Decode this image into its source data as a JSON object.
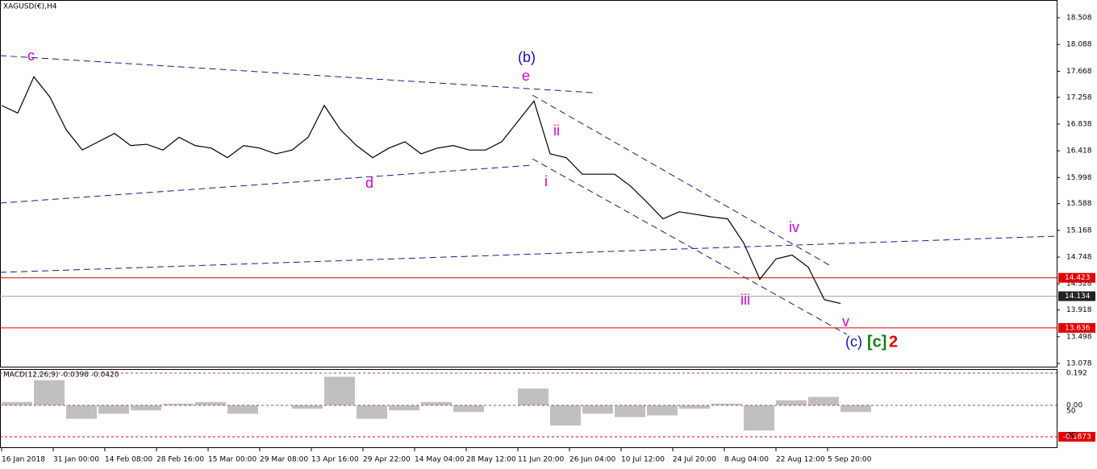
{
  "symbol_label": "XAGUSD(€),H4",
  "price_axis": {
    "ticks": [
      18.508,
      18.088,
      17.668,
      17.258,
      16.838,
      16.418,
      15.998,
      15.588,
      15.168,
      14.748,
      14.328,
      13.918,
      13.498,
      13.078
    ]
  },
  "price_levels": [
    {
      "value": 14.423,
      "color": "#e00000"
    },
    {
      "value": 14.134,
      "color": "#a0a0a0"
    },
    {
      "value": 13.636,
      "color": "#e00000"
    }
  ],
  "time_axis": [
    "16 Jan 2018",
    "31 Jan 00:00",
    "14 Feb 08:00",
    "28 Feb 16:00",
    "15 Mar 00:00",
    "29 Mar 08:00",
    "13 Apr 16:00",
    "29 Apr 22:00",
    "14 May 04:00",
    "28 May 12:00",
    "11 Jun 20:00",
    "26 Jun 04:00",
    "10 Jul 12:00",
    "24 Jul 20:00",
    "8 Aug 04:00",
    "22 Aug 12:00",
    "5 Sep 20:00"
  ],
  "wave_labels": [
    {
      "text": "c",
      "color": "#d000d0"
    },
    {
      "text": "(b)",
      "color": "#1010c0"
    },
    {
      "text": "e",
      "color": "#d000d0"
    },
    {
      "text": "ii",
      "color": "#d000d0"
    },
    {
      "text": "i",
      "color": "#d000d0"
    },
    {
      "text": "d",
      "color": "#d000d0"
    },
    {
      "text": "iii",
      "color": "#d000d0"
    },
    {
      "text": "iv",
      "color": "#d000d0"
    },
    {
      "text": "v",
      "color": "#d000d0"
    },
    {
      "text": "(c)",
      "color": "#1010c0"
    },
    {
      "text": "[c]",
      "color": "#108010"
    },
    {
      "text": "2",
      "color": "#e00000"
    }
  ],
  "price_path": {
    "color": "#000000",
    "values": [
      17.13,
      17.01,
      17.58,
      17.26,
      16.75,
      16.43,
      16.56,
      16.69,
      16.5,
      16.52,
      16.43,
      16.63,
      16.5,
      16.46,
      16.31,
      16.5,
      16.46,
      16.37,
      16.43,
      16.63,
      17.13,
      16.75,
      16.5,
      16.31,
      16.46,
      16.56,
      16.37,
      16.46,
      16.5,
      16.43,
      16.43,
      16.56,
      16.88,
      17.2,
      16.37,
      16.31,
      16.05,
      16.05,
      16.05,
      15.86,
      15.61,
      15.35,
      15.46,
      15.42,
      15.38,
      15.35,
      14.97,
      14.4,
      14.72,
      14.78,
      14.59,
      14.08,
      14.02
    ]
  },
  "macd": {
    "label": "MACD(12,26,9) -0.0398 -0.0420",
    "ticks": [
      0.192,
      {
        "value": 0,
        "label": "0.00"
      }
    ],
    "level": {
      "value": -0.1873,
      "color": "#e00000"
    },
    "side_labels": [
      "50",
      "20"
    ],
    "color": "#c0c0c0",
    "values": [
      0.02,
      0.15,
      -0.08,
      -0.05,
      -0.03,
      0.01,
      0.02,
      -0.05,
      0.0,
      -0.02,
      0.17,
      -0.08,
      -0.03,
      0.02,
      -0.04,
      0.0,
      0.1,
      -0.12,
      -0.05,
      -0.07,
      -0.06,
      -0.02,
      0.01,
      -0.15,
      0.03,
      0.05,
      -0.04
    ]
  }
}
